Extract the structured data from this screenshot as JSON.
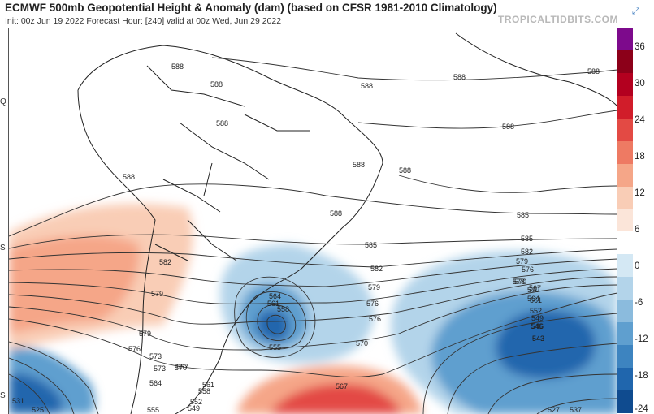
{
  "header": {
    "title": "ECMWF 500mb Geopotential Height & Anomaly (dam) (based on CFSR 1981-2010 Climatology)",
    "subtitle": "Init: 00z Jun 19 2022   Forecast Hour: [240]   valid at 00z Wed, Jun 29 2022",
    "brand": "TROPICALTIDBITS.COM",
    "expand_icon": "expand-icon"
  },
  "lat_labels": [
    "Q",
    "S",
    "S"
  ],
  "colorbar": {
    "labels": [
      "36",
      "30",
      "24",
      "18",
      "12",
      "6",
      "0",
      "-6",
      "-12",
      "-18",
      "-24"
    ],
    "colors": [
      "#7d0a8c",
      "#8c0019",
      "#b3001f",
      "#d11d2a",
      "#e34a44",
      "#ee7a63",
      "#f5a688",
      "#f9cdb6",
      "#fbe5d9",
      "#ffffff",
      "#d4e8f4",
      "#b3d4ea",
      "#8bbbdd",
      "#5f9fcf",
      "#3d84c0",
      "#2066ad",
      "#0f4b8f"
    ]
  },
  "contour_labels": [
    "588",
    "588",
    "588",
    "588",
    "588",
    "588",
    "588",
    "588",
    "588",
    "588",
    "588",
    "585",
    "585",
    "585",
    "582",
    "582",
    "582",
    "579",
    "579",
    "579",
    "579",
    "576",
    "576",
    "576",
    "576",
    "573",
    "573",
    "573",
    "570",
    "570",
    "570",
    "570",
    "567",
    "567",
    "567",
    "564",
    "564",
    "564",
    "561",
    "561",
    "561",
    "558",
    "558",
    "555",
    "555",
    "552",
    "549",
    "546",
    "543",
    "552",
    "549",
    "546",
    "543",
    "531",
    "525",
    "527",
    "537"
  ]
}
